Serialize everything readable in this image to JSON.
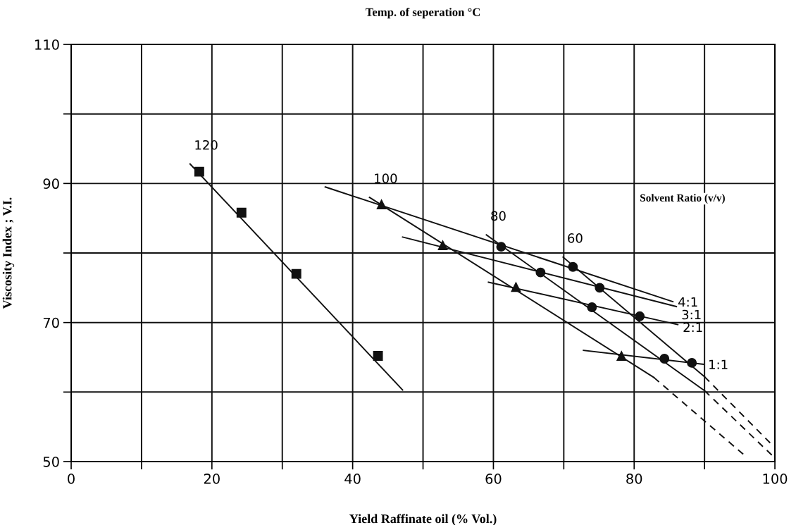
{
  "chart_data": {
    "type": "line",
    "title": "Temp. of seperation °C",
    "xlabel": "Yield Raffinate oil (% Vol.)",
    "ylabel": "Viscosity Index ; V.I.",
    "annotations": [
      "Solvent Ratio (v/v)"
    ],
    "xlim": [
      0,
      100
    ],
    "ylim": [
      50,
      110
    ],
    "xticks": [
      0,
      {
        "value": 10,
        "label": null
      },
      20,
      {
        "value": 30,
        "label": null
      },
      40,
      {
        "value": 50,
        "label": null
      },
      60,
      {
        "value": 70,
        "label": null
      },
      80,
      {
        "value": 90,
        "label": null
      },
      100
    ],
    "yticks": [
      50,
      {
        "value": 60,
        "label": null
      },
      70,
      {
        "value": 80,
        "label": null
      },
      90,
      {
        "value": 100,
        "label": null
      },
      110
    ],
    "grid": true,
    "legend": false,
    "marker": "none",
    "line_style": "solid",
    "series": [
      {
        "name": "120",
        "color": "#111111",
        "x": [
          16.9,
          47.1
        ],
        "values": [
          92.8,
          60.3
        ]
      },
      {
        "type": "scatter",
        "marker": "square",
        "color": "#111111",
        "x": [
          18.2,
          24.2,
          32.0,
          43.6
        ],
        "values": [
          91.7,
          85.8,
          77.0,
          65.2
        ]
      },
      {
        "name": "100",
        "color": "#111111",
        "x": [
          42.4,
          82.8
        ],
        "values": [
          88.0,
          62.1
        ]
      },
      {
        "line_style": "dashed",
        "color": "#111111",
        "x": [
          82.8,
          95.8
        ],
        "values": [
          62.1,
          50.8
        ]
      },
      {
        "type": "scatter",
        "marker": "triangle",
        "color": "#111111",
        "x": [
          44.1,
          52.8,
          63.2,
          78.2
        ],
        "values": [
          87.0,
          81.1,
          75.1,
          65.2
        ]
      },
      {
        "name": "80",
        "color": "#111111",
        "x": [
          59.0,
          90.0
        ],
        "values": [
          82.6,
          60.2
        ]
      },
      {
        "line_style": "dashed",
        "color": "#111111",
        "x": [
          90.0,
          99.7
        ],
        "values": [
          60.2,
          50.8
        ]
      },
      {
        "type": "scatter",
        "marker": "circle",
        "color": "#111111",
        "x": [
          61.1,
          66.7,
          74.0,
          84.3
        ],
        "values": [
          80.9,
          77.2,
          72.2,
          64.8
        ]
      },
      {
        "name": "60",
        "color": "#111111",
        "x": [
          69.9,
          90.0
        ],
        "values": [
          79.4,
          62.2
        ]
      },
      {
        "line_style": "dashed",
        "color": "#111111",
        "x": [
          90.0,
          99.8
        ],
        "values": [
          62.2,
          52.2
        ]
      },
      {
        "type": "scatter",
        "marker": "circle",
        "color": "#111111",
        "x": [
          71.3,
          75.1,
          80.8,
          88.2
        ],
        "values": [
          78.0,
          75.0,
          70.9,
          64.2
        ]
      },
      {
        "name": "4:1",
        "color": "#111111",
        "x": [
          36.1,
          85.5
        ],
        "values": [
          89.5,
          73.0
        ]
      },
      {
        "name": "3:1",
        "color": "#111111",
        "x": [
          47.1,
          86.0
        ],
        "values": [
          82.3,
          72.3
        ]
      },
      {
        "name": "2:1",
        "color": "#111111",
        "x": [
          59.3,
          86.2
        ],
        "values": [
          75.8,
          69.7
        ]
      },
      {
        "name": "1:1",
        "color": "#111111",
        "x": [
          72.8,
          89.8
        ],
        "values": [
          66.0,
          64.0
        ]
      }
    ]
  }
}
